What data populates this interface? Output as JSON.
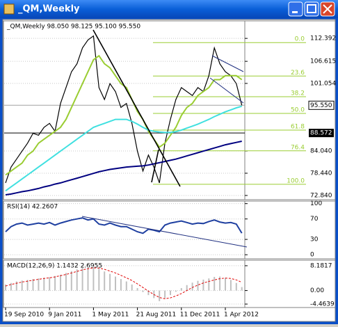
{
  "window": {
    "title": "_QM,Weekly"
  },
  "chart_data": [
    {
      "type": "line",
      "title": "_QM,Weekly  98.050 98.125 95.100 95.550",
      "categories": [
        "19 Sep 2010",
        null,
        null,
        null,
        null,
        null,
        null,
        null,
        "9 Jan 2011",
        null,
        null,
        null,
        null,
        null,
        null,
        null,
        "1 May 2011",
        null,
        null,
        null,
        null,
        null,
        null,
        null,
        "21 Aug 2011",
        null,
        null,
        null,
        null,
        null,
        null,
        null,
        "11 Dec 2011",
        null,
        null,
        null,
        null,
        null,
        null,
        null,
        "1 Apr 2012",
        null,
        null,
        null
      ],
      "ylim": [
        71.78,
        116.8
      ],
      "yticks": [
        112.392,
        106.615,
        101.054,
        {
          "value": 84.04,
          "label": "84.040"
        },
        {
          "value": 78.44,
          "label": "78.440"
        },
        {
          "value": 72.84,
          "label": "72.840"
        }
      ],
      "current_price": {
        "value": 95.55,
        "label": "95.550"
      },
      "marked_price": {
        "value": 88.572,
        "label": "88.572"
      },
      "fib_levels": [
        {
          "value": 111.33,
          "label": "0.0"
        },
        {
          "value": 102.91,
          "label": "23.6"
        },
        {
          "value": 97.7,
          "label": "38.2"
        },
        {
          "value": 93.5,
          "label": "50.0"
        },
        {
          "value": 89.29,
          "label": "61.8"
        },
        {
          "value": 84.08,
          "label": "76.4"
        },
        {
          "value": 75.66,
          "label": "100.0"
        }
      ],
      "series": [
        {
          "color": "#000000",
          "values": [
            76,
            80,
            82,
            84,
            86,
            88.5,
            88,
            90,
            91,
            89,
            96,
            100,
            104,
            106,
            110,
            112,
            113,
            100,
            97,
            101,
            99,
            95,
            96,
            91,
            84,
            79,
            83,
            80,
            76,
            86,
            92,
            97,
            100,
            99,
            98,
            100,
            99,
            103,
            110,
            106,
            104,
            103,
            101,
            95.55
          ]
        },
        {
          "color": "#9acd32",
          "values": [
            78,
            79,
            80,
            81,
            83,
            84,
            86,
            87,
            88,
            89,
            90,
            92,
            95,
            98,
            101,
            104,
            107,
            108,
            106,
            105,
            103,
            101,
            100,
            97,
            94,
            92,
            89,
            87,
            85,
            86,
            88,
            90,
            93,
            95,
            96,
            98,
            99,
            100,
            102,
            102,
            103,
            103,
            103,
            102
          ]
        },
        {
          "color": "#40e0e0",
          "values": [
            74,
            75,
            76,
            77,
            78,
            79,
            80,
            81,
            82,
            83,
            84,
            85,
            86,
            87,
            88,
            89,
            90,
            90.5,
            91,
            91.5,
            92,
            92,
            92,
            91.5,
            90.8,
            90,
            89.3,
            89,
            88.8,
            88.7,
            88.7,
            88.9,
            89.3,
            89.8,
            90.3,
            90.8,
            91.4,
            92,
            92.7,
            93.3,
            93.9,
            94.4,
            94.9,
            95.3
          ]
        },
        {
          "color": "#000080",
          "values": [
            73,
            73.2,
            73.5,
            73.8,
            74,
            74.3,
            74.6,
            75,
            75.3,
            75.7,
            76,
            76.4,
            76.8,
            77.2,
            77.6,
            78,
            78.4,
            78.8,
            79.1,
            79.4,
            79.6,
            79.8,
            80,
            80.1,
            80.2,
            80.3,
            80.5,
            80.8,
            81.1,
            81.4,
            81.7,
            82,
            82.4,
            82.8,
            83.2,
            83.6,
            84,
            84.4,
            84.8,
            85.2,
            85.6,
            85.9,
            86.2,
            86.5
          ]
        }
      ]
    },
    {
      "type": "line",
      "title": "RSI(14) 42.2607",
      "ylim": [
        -8,
        105
      ],
      "yticks": [
        0,
        30,
        70,
        100
      ],
      "series": [
        {
          "color": "#1e3fa0",
          "values": [
            45,
            55,
            60,
            62,
            58,
            60,
            62,
            60,
            63,
            58,
            62,
            65,
            68,
            70,
            72,
            68,
            70,
            60,
            58,
            62,
            58,
            55,
            55,
            50,
            45,
            42,
            50,
            48,
            45,
            58,
            62,
            64,
            66,
            63,
            60,
            62,
            61,
            65,
            68,
            64,
            62,
            63,
            60,
            42.2607
          ]
        }
      ]
    },
    {
      "type": "bar",
      "title": "MACD(12,26,9) 1.1432 2.6955",
      "ylim": [
        -5.6,
        10
      ],
      "yticks": [
        8.1817,
        {
          "value": 0,
          "label": "0.00"
        },
        -4.4639
      ],
      "series": [
        {
          "color": "#c0c0c0",
          "values": [
            2,
            2.5,
            3,
            3.3,
            3.5,
            3.8,
            4,
            4.2,
            4.4,
            4.8,
            5.2,
            5.8,
            6.4,
            7,
            7.5,
            7.8,
            8,
            7.2,
            6.3,
            5.5,
            4.6,
            3.8,
            3,
            2,
            0.8,
            -0.5,
            -1.5,
            -2.5,
            -3.5,
            -2.5,
            -1.5,
            -0.4,
            0.8,
            1.8,
            2.6,
            3.2,
            3.6,
            4,
            4.5,
            4.6,
            4.2,
            3.5,
            2.5,
            1.1432
          ]
        },
        {
          "color": "#e00000",
          "dashed": true,
          "values": [
            1.5,
            2,
            2.4,
            2.8,
            3.1,
            3.4,
            3.7,
            4,
            4.2,
            4.5,
            4.9,
            5.3,
            5.8,
            6.3,
            6.8,
            7.2,
            7.5,
            7.4,
            7,
            6.4,
            5.8,
            5,
            4.2,
            3.3,
            2.2,
            1,
            -0.2,
            -1.3,
            -2.3,
            -2.7,
            -2.4,
            -1.8,
            -1,
            0,
            1,
            1.8,
            2.5,
            3,
            3.5,
            3.9,
            4.1,
            4,
            3.5,
            2.6955
          ]
        }
      ]
    }
  ]
}
